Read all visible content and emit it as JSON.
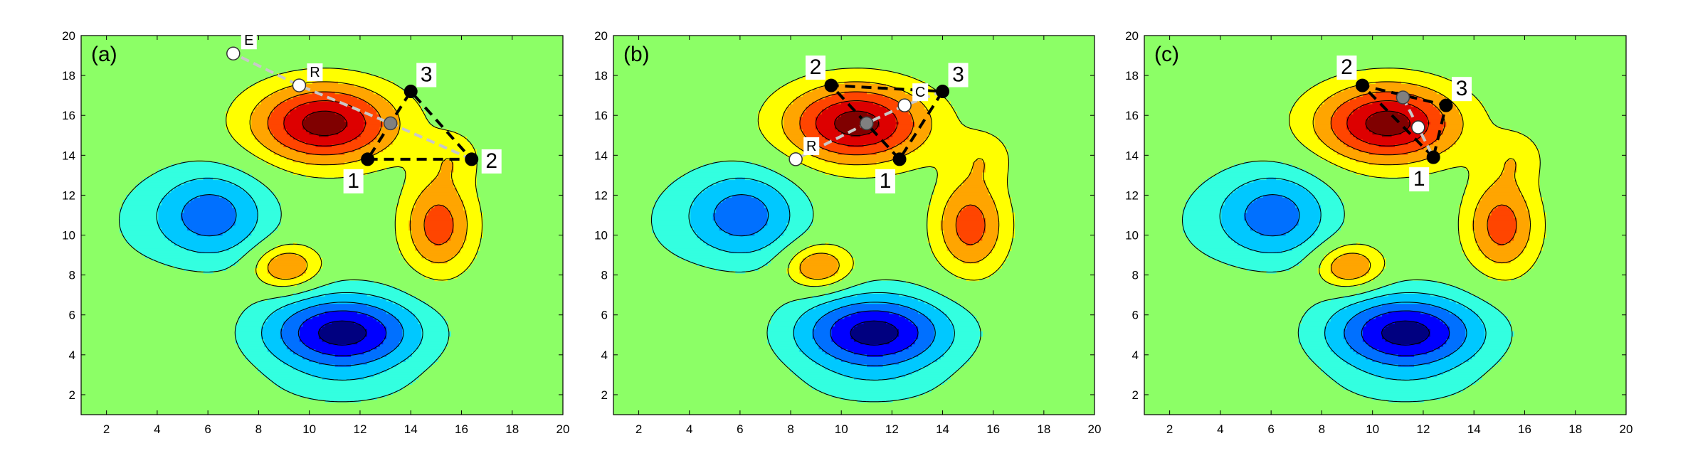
{
  "figure": {
    "panel_labels": [
      "(a)",
      "(b)",
      "(c)"
    ]
  },
  "chart_data": [
    {
      "type": "contour",
      "panel_label": "(a)",
      "title": "",
      "xlabel": "",
      "ylabel": "",
      "xlim": [
        1,
        20
      ],
      "ylim": [
        1,
        20
      ],
      "xticks": [
        2,
        4,
        6,
        8,
        10,
        12,
        14,
        16,
        18,
        20
      ],
      "yticks": [
        2,
        4,
        6,
        8,
        10,
        12,
        14,
        16,
        18,
        20
      ],
      "contour_levels_colors": [
        "#000080",
        "#0000ff",
        "#0070ff",
        "#00c8ff",
        "#33ffe0",
        "#8cff66",
        "#ffff00",
        "#ffa500",
        "#ff4500",
        "#dd0000",
        "#800000"
      ],
      "simplex": {
        "vertices": [
          {
            "label": "1",
            "x": 12.3,
            "y": 13.8
          },
          {
            "label": "2",
            "x": 16.4,
            "y": 13.8
          },
          {
            "label": "3",
            "x": 14.0,
            "y": 17.2
          }
        ],
        "centroid": {
          "label": "",
          "x": 13.2,
          "y": 15.6
        },
        "trial_points": [
          {
            "label": "R",
            "x": 9.6,
            "y": 17.5
          },
          {
            "label": "E",
            "x": 7.0,
            "y": 19.1
          }
        ],
        "search_line": [
          [
            16.4,
            13.8
          ],
          [
            13.2,
            15.6
          ],
          [
            9.6,
            17.5
          ],
          [
            7.0,
            19.1
          ]
        ]
      }
    },
    {
      "type": "contour",
      "panel_label": "(b)",
      "title": "",
      "xlabel": "",
      "ylabel": "",
      "xlim": [
        1,
        20
      ],
      "ylim": [
        1,
        20
      ],
      "xticks": [
        2,
        4,
        6,
        8,
        10,
        12,
        14,
        16,
        18,
        20
      ],
      "yticks": [
        2,
        4,
        6,
        8,
        10,
        12,
        14,
        16,
        18,
        20
      ],
      "simplex": {
        "vertices": [
          {
            "label": "1",
            "x": 12.3,
            "y": 13.8
          },
          {
            "label": "2",
            "x": 9.6,
            "y": 17.5
          },
          {
            "label": "3",
            "x": 14.0,
            "y": 17.2
          }
        ],
        "centroid": {
          "label": "",
          "x": 11.0,
          "y": 15.6
        },
        "trial_points": [
          {
            "label": "C",
            "x": 12.5,
            "y": 16.5
          },
          {
            "label": "R",
            "x": 8.2,
            "y": 13.8
          }
        ],
        "search_line": [
          [
            14.0,
            17.2
          ],
          [
            12.5,
            16.5
          ],
          [
            11.0,
            15.6
          ],
          [
            8.2,
            13.8
          ]
        ]
      }
    },
    {
      "type": "contour",
      "panel_label": "(c)",
      "title": "",
      "xlabel": "",
      "ylabel": "",
      "xlim": [
        1,
        20
      ],
      "ylim": [
        1,
        20
      ],
      "xticks": [
        2,
        4,
        6,
        8,
        10,
        12,
        14,
        16,
        18,
        20
      ],
      "yticks": [
        2,
        4,
        6,
        8,
        10,
        12,
        14,
        16,
        18,
        20
      ],
      "simplex": {
        "vertices": [
          {
            "label": "1",
            "x": 12.4,
            "y": 13.9
          },
          {
            "label": "2",
            "x": 9.6,
            "y": 17.5
          },
          {
            "label": "3",
            "x": 12.9,
            "y": 16.5
          }
        ],
        "centroid": {
          "label": "",
          "x": 11.2,
          "y": 16.9
        },
        "trial_points": [
          {
            "label": "",
            "x": 11.8,
            "y": 15.4
          }
        ],
        "search_line": [
          [
            11.2,
            16.9
          ],
          [
            11.8,
            15.4
          ],
          [
            12.4,
            13.9
          ]
        ]
      }
    }
  ]
}
